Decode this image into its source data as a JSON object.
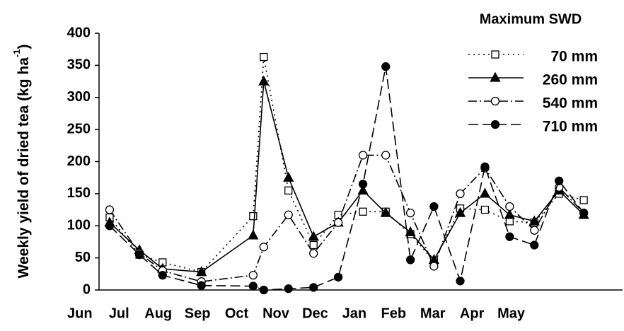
{
  "chart_data": {
    "type": "line",
    "ylabel": "Weekly yield of dried tea (kg ha",
    "ylabel_sup": "-1",
    "ylabel_end": ")",
    "legend_title": "Maximum SWD",
    "legend": "upper right",
    "x": [
      0.76,
      1.52,
      2.11,
      3.1,
      4.42,
      4.69,
      5.32,
      5.96,
      6.59,
      7.22,
      7.8,
      8.43,
      9.03,
      9.7,
      10.33,
      10.96,
      11.59,
      12.22,
      12.85
    ],
    "xlim": [
      0.49,
      13.84
    ],
    "xticks": [
      {
        "value": 0,
        "label": "Jun"
      },
      {
        "value": 1,
        "label": "Jul"
      },
      {
        "value": 2,
        "label": "Aug"
      },
      {
        "value": 3,
        "label": "Sep"
      },
      {
        "value": 4,
        "label": "Oct"
      },
      {
        "value": 5,
        "label": "Nov"
      },
      {
        "value": 6,
        "label": "Dec"
      },
      {
        "value": 7,
        "label": "Jan"
      },
      {
        "value": 8,
        "label": "Feb"
      },
      {
        "value": 9,
        "label": "Mar"
      },
      {
        "value": 10,
        "label": "Apr"
      },
      {
        "value": 11,
        "label": "May"
      }
    ],
    "ylim": [
      0,
      400
    ],
    "yticks": [
      0,
      50,
      100,
      150,
      200,
      250,
      300,
      350,
      400
    ],
    "series": [
      {
        "name": "70 mm",
        "color": "#000000",
        "dash": "2,5",
        "marker": "square-open",
        "values": [
          113,
          55,
          43,
          28,
          115,
          363,
          155,
          70,
          117,
          122,
          122,
          87,
          45,
          127,
          125,
          107,
          105,
          150,
          140
        ]
      },
      {
        "name": "260 mm",
        "color": "#000000",
        "dash": "none",
        "marker": "triangle",
        "values": [
          105,
          62,
          33,
          28,
          85,
          325,
          175,
          83,
          105,
          155,
          120,
          90,
          47,
          120,
          150,
          117,
          107,
          155,
          117
        ]
      },
      {
        "name": "540 mm",
        "color": "#000000",
        "dash": "12,4,2,4",
        "marker": "circle-open",
        "values": [
          125,
          57,
          30,
          13,
          23,
          67,
          117,
          57,
          105,
          210,
          210,
          120,
          37,
          150,
          190,
          130,
          93,
          160,
          120
        ]
      },
      {
        "name": "710 mm",
        "color": "#000000",
        "dash": "14,6",
        "marker": "circle-filled",
        "values": [
          100,
          55,
          23,
          7,
          6,
          0,
          2,
          4,
          20,
          165,
          348,
          47,
          130,
          14,
          192,
          83,
          70,
          170,
          120
        ]
      }
    ]
  }
}
